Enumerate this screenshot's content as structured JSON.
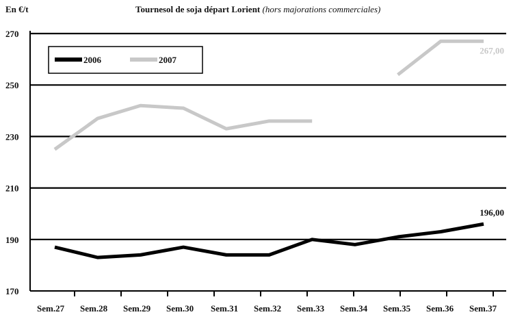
{
  "chart_data": {
    "type": "line",
    "title_main": "Tournesol de soja départ Lorient",
    "title_note": "(hors majorations commerciales)",
    "ylabel": "En €/t",
    "xlabel": "",
    "categories": [
      "Sem.27",
      "Sem.28",
      "Sem.29",
      "Sem.30",
      "Sem.31",
      "Sem.32",
      "Sem.33",
      "Sem.34",
      "Sem.35",
      "Sem.36",
      "Sem.37"
    ],
    "ylim": [
      170,
      270
    ],
    "yticks": [
      170,
      190,
      210,
      230,
      250,
      270
    ],
    "grid": "horizontal",
    "legend_position": "top-left",
    "series": [
      {
        "name": "2006",
        "color": "#000000",
        "values": [
          187,
          183,
          184,
          187,
          184,
          184,
          190,
          188,
          191,
          193,
          196
        ],
        "end_label": "196,00"
      },
      {
        "name": "2007",
        "color": "#c8c8c8",
        "values": [
          225,
          237,
          242,
          241,
          233,
          236,
          236,
          null,
          254,
          267,
          267
        ],
        "end_label": "267,00"
      }
    ]
  }
}
